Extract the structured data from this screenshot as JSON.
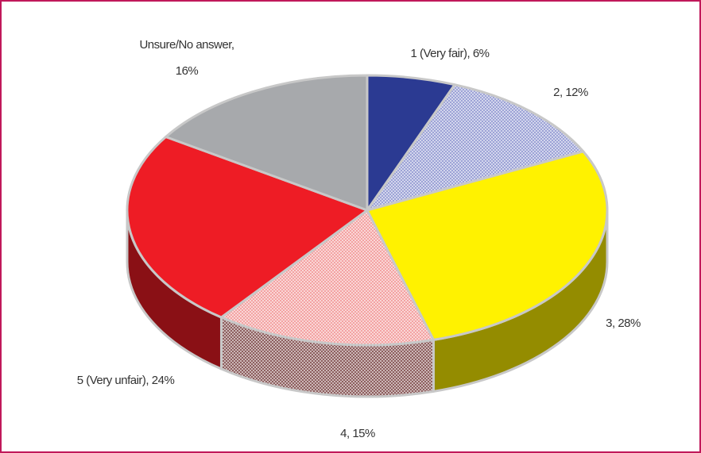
{
  "chart_data": {
    "type": "pie",
    "values": [
      6,
      12,
      28,
      15,
      24,
      16
    ],
    "value_labels": [
      "1 (Very fair), 6%",
      "2, 12%",
      "3, 28%",
      "4, 15%",
      "5 (Very unfair), 24%",
      "Unsure/No answer, 16%"
    ],
    "colors": [
      "#2b3a92",
      "#9da3d6",
      "#fff200",
      "#f3a3a3",
      "#ee1c25",
      "#a7a9ac"
    ],
    "patterns": [
      false,
      true,
      false,
      true,
      false,
      false
    ],
    "three_d": true
  }
}
